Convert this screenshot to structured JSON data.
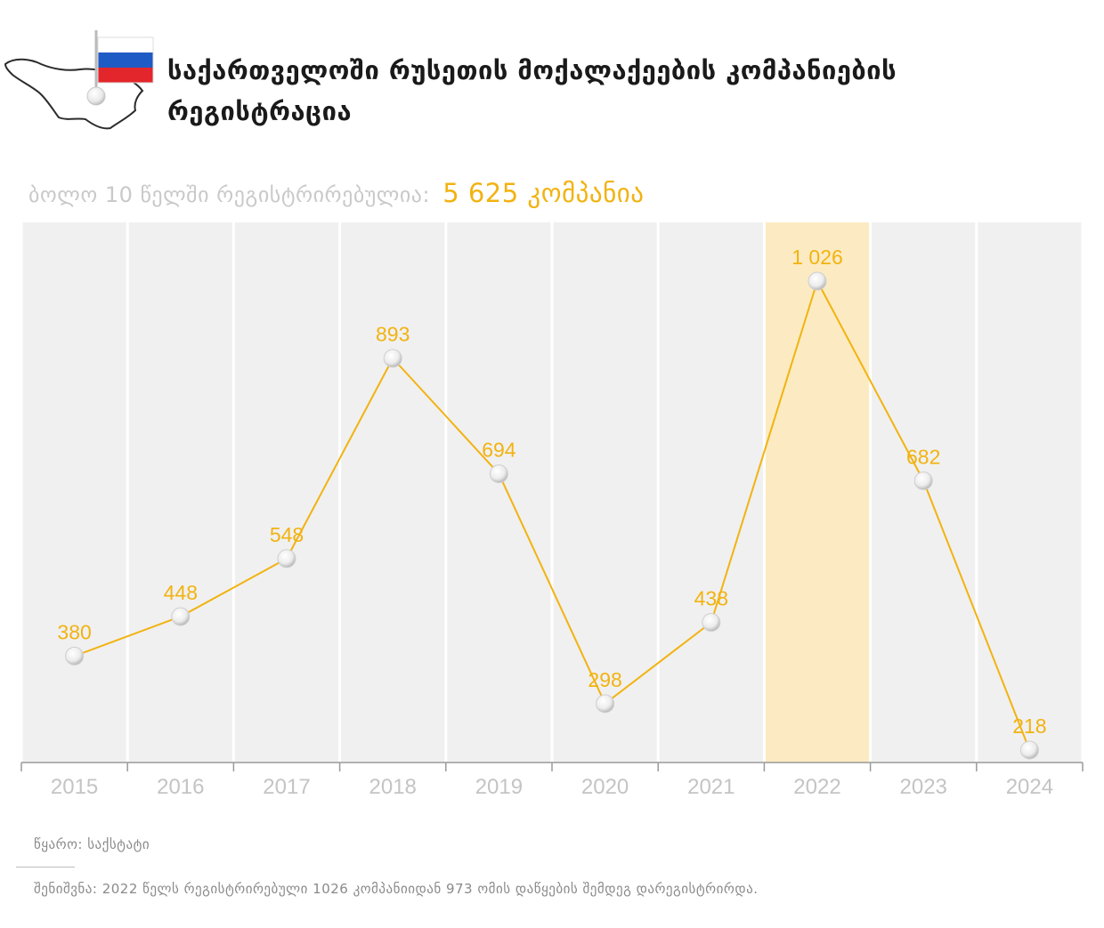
{
  "header": {
    "title": "საქართველოში რუსეთის მოქალაქეების კომპანიების რეგისტრაცია",
    "flag_colors": [
      "#ffffff",
      "#1f5bc5",
      "#e3262b"
    ]
  },
  "summary": {
    "label": "ბოლო 10 წელში რეგისტრირებულია:",
    "total": "5 625 კომპანია"
  },
  "chart_data": {
    "type": "line",
    "categories": [
      "2015",
      "2016",
      "2017",
      "2018",
      "2019",
      "2020",
      "2021",
      "2022",
      "2023",
      "2024"
    ],
    "values": [
      380,
      448,
      548,
      893,
      694,
      298,
      438,
      1026,
      682,
      218
    ],
    "labels": [
      "380",
      "448",
      "548",
      "893",
      "694",
      "298",
      "438",
      "1 026",
      "682",
      "218"
    ],
    "highlight_category": "2022",
    "colors": {
      "line": "#f2b311",
      "label": "#f2b311",
      "column": "#f0f0f0",
      "highlight": "#fcebc2",
      "tick_label": "#c4c4c4",
      "axis": "#9a9a9a"
    }
  },
  "footer": {
    "source": "წყარო: საქსტატი",
    "note": "შენიშვნა: 2022 წელს რეგისტრირებული 1026 კომპანიიდან 973 ომის დაწყების შემდეგ დარეგისტრირდა."
  }
}
